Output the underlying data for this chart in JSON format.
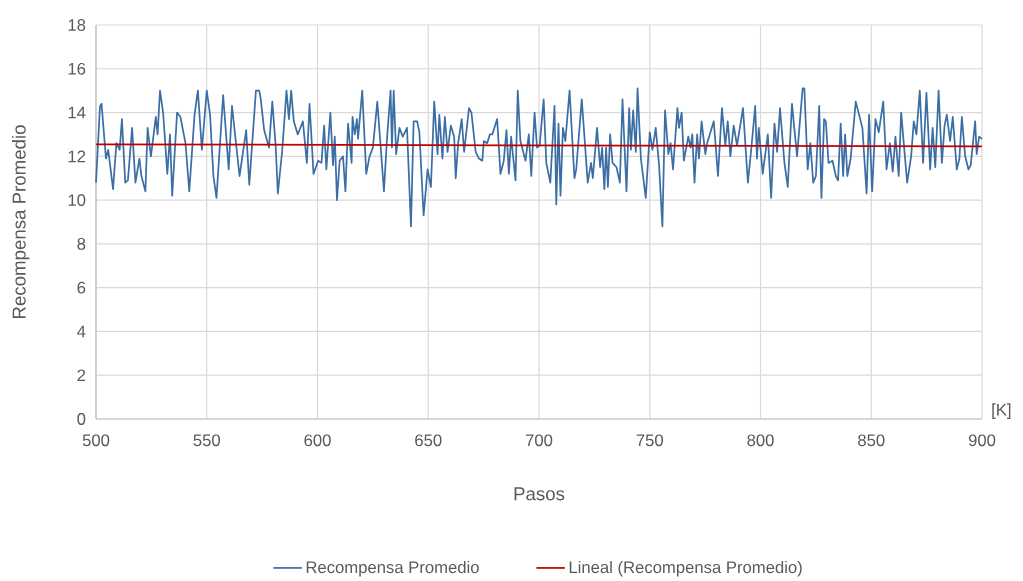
{
  "chart_data": {
    "type": "line",
    "xlabel": "Pasos",
    "ylabel": "Recompensa Promedio",
    "annotations": [
      "[K]"
    ],
    "xlim": [
      500,
      900
    ],
    "xticks": [
      500,
      550,
      600,
      650,
      700,
      750,
      800,
      850,
      900
    ],
    "ylim": [
      0,
      18
    ],
    "yticks": [
      0,
      2,
      4,
      6,
      8,
      10,
      12,
      14,
      16,
      18
    ],
    "grid": true,
    "legend": "bottom",
    "marker": "none",
    "line_style": "solid",
    "series": [
      {
        "name": "Recompensa Promedio",
        "color": "#3b6ea5",
        "x": [
          500,
          501.8,
          502.5,
          504.5,
          505.5,
          507.7,
          509.2,
          510.7,
          511.7,
          513.2,
          514.4,
          516.3,
          517.8,
          519.6,
          520.5,
          522.3,
          523.3,
          524.8,
          527,
          527.8,
          528.9,
          530.3,
          532.2,
          533.4,
          534.4,
          536.6,
          538.1,
          540.4,
          542.1,
          544.5,
          546,
          547.8,
          550,
          551.5,
          553,
          554.4,
          557.4,
          559.9,
          561.4,
          564.8,
          567.8,
          569.2,
          572.2,
          573.7,
          574.4,
          575.9,
          578.1,
          579.6,
          581.1,
          582.1,
          584.1,
          586,
          587.1,
          588.1,
          589.3,
          591.1,
          593.4,
          595.2,
          596.4,
          598.2,
          600.3,
          601.8,
          603,
          604,
          605.8,
          607,
          607.8,
          608.8,
          610,
          611.5,
          612.6,
          613.8,
          615.4,
          615.8,
          616.8,
          617.8,
          618.3,
          620.2,
          622,
          623.5,
          625,
          627,
          630,
          631.3,
          633,
          633.6,
          634.4,
          635.5,
          637,
          638.5,
          640.4,
          642.2,
          643.4,
          645,
          646,
          647.9,
          649.7,
          651.2,
          652.7,
          654.2,
          655,
          656.4,
          657.5,
          658.7,
          660.2,
          661.7,
          662.4,
          663.5,
          665.1,
          666.2,
          668.4,
          669.5,
          671.4,
          672.9,
          674.4,
          675.1,
          676.6,
          677.8,
          678.9,
          681.1,
          682.6,
          684.1,
          685.3,
          686.4,
          687.4,
          689.4,
          690.4,
          691.6,
          693.9,
          695.4,
          696.5,
          698,
          699.1,
          700.3,
          702.1,
          703.3,
          705.1,
          707,
          707.8,
          708.8,
          709.7,
          710.8,
          711.9,
          713.8,
          716,
          716.8,
          719.3,
          722,
          723.5,
          724.3,
          726.2,
          727.6,
          728.5,
          729.5,
          730.3,
          731.1,
          732.1,
          733.2,
          735,
          736.5,
          737.7,
          739.5,
          740.7,
          741.5,
          742.5,
          743.7,
          744.5,
          746,
          748.2,
          750,
          751.2,
          752.7,
          754.2,
          755.7,
          756.9,
          758.4,
          759.4,
          760.5,
          762.5,
          763.2,
          764.4,
          765.4,
          767.4,
          768.4,
          769.2,
          770.2,
          771.4,
          772.2,
          773.4,
          775.1,
          775.9,
          777.4,
          778.9,
          780.8,
          782.6,
          784.1,
          785.2,
          786.4,
          787.9,
          789.4,
          792.1,
          794.3,
          795.8,
          797.6,
          798.4,
          799.2,
          801,
          803.3,
          804.8,
          806.3,
          807.5,
          808.8,
          810.8,
          812.3,
          814.2,
          816.5,
          819,
          819.8,
          821.3,
          822.5,
          823.8,
          825,
          826.5,
          827.5,
          828.7,
          829.5,
          830.7,
          832.5,
          834,
          835,
          836.2,
          837.3,
          838.2,
          839.2,
          840.7,
          843,
          846,
          847.9,
          849,
          850.4,
          851.9,
          853.4,
          855.4,
          856.9,
          858.4,
          859.7,
          860.9,
          862.4,
          863.5,
          866.2,
          868,
          869.2,
          870.4,
          871.9,
          873.4,
          874.9,
          876.6,
          877.7,
          878.9,
          880.4,
          881.9,
          883.1,
          884.1,
          885.6,
          886.8,
          888.6,
          889.8,
          890.9,
          892.4,
          893.9,
          894.9,
          896.9,
          897.6,
          898.7,
          900
        ],
        "values": [
          10.8,
          14.3,
          14.4,
          11.9,
          12.3,
          10.5,
          12.6,
          12.3,
          13.7,
          10.8,
          10.9,
          13.3,
          10.8,
          11.9,
          11.1,
          10.4,
          13.3,
          12.0,
          13.8,
          13.0,
          15.0,
          14.0,
          11.2,
          13.0,
          10.2,
          14.0,
          13.8,
          12.6,
          10.4,
          13.9,
          15.0,
          12.3,
          15.0,
          13.9,
          11.1,
          10.1,
          14.8,
          11.4,
          14.3,
          11.1,
          13.2,
          10.7,
          15.0,
          15.0,
          14.6,
          13.2,
          12.4,
          14.5,
          12.5,
          10.3,
          12.3,
          15.0,
          13.7,
          15.0,
          13.6,
          13.0,
          13.6,
          11.7,
          14.4,
          11.2,
          11.8,
          11.7,
          13.4,
          11.4,
          14.0,
          11.6,
          12.9,
          10.0,
          11.8,
          12.0,
          10.4,
          13.5,
          11.7,
          13.8,
          13.0,
          13.7,
          12.8,
          15.0,
          11.2,
          12.0,
          12.4,
          14.5,
          10.4,
          12.7,
          15.0,
          12.4,
          15.0,
          12.1,
          13.3,
          12.9,
          13.3,
          8.8,
          13.6,
          13.6,
          13.1,
          9.3,
          11.4,
          10.6,
          14.5,
          12.1,
          13.9,
          11.9,
          13.8,
          12.2,
          13.4,
          12.9,
          11.0,
          12.6,
          13.7,
          12.2,
          14.2,
          14.0,
          12.2,
          11.9,
          11.8,
          12.7,
          12.6,
          13.0,
          13.0,
          13.7,
          11.2,
          11.8,
          13.2,
          11.2,
          12.9,
          10.9,
          15.0,
          12.7,
          11.8,
          13.0,
          11.1,
          14.0,
          12.4,
          12.5,
          14.6,
          11.7,
          10.8,
          14.3,
          9.8,
          13.5,
          10.2,
          13.3,
          12.7,
          15.0,
          11.0,
          11.4,
          14.6,
          10.8,
          11.7,
          11.0,
          13.3,
          11.5,
          12.4,
          10.5,
          12.4,
          10.6,
          13.0,
          11.7,
          11.5,
          10.8,
          14.6,
          10.4,
          14.2,
          12.3,
          14.1,
          12.2,
          15.1,
          11.9,
          10.1,
          13.1,
          12.3,
          13.3,
          11.6,
          8.8,
          14.1,
          12.1,
          12.6,
          11.4,
          14.2,
          13.3,
          14.0,
          11.8,
          12.9,
          12.4,
          13.0,
          10.8,
          13.0,
          11.9,
          13.6,
          12.1,
          12.6,
          13.1,
          13.6,
          11.1,
          14.2,
          12.5,
          13.6,
          12.0,
          13.4,
          12.5,
          14.2,
          10.8,
          12.3,
          14.3,
          11.9,
          13.3,
          11.2,
          13.0,
          10.1,
          13.5,
          12.2,
          14.2,
          11.7,
          10.6,
          14.4,
          12.0,
          15.1,
          15.1,
          11.4,
          12.6,
          10.8,
          11.1,
          14.3,
          10.1,
          13.7,
          13.6,
          11.7,
          11.8,
          11.1,
          10.9,
          13.5,
          11.1,
          13.0,
          11.1,
          11.9,
          14.5,
          13.3,
          10.3,
          13.9,
          10.4,
          13.7,
          13.1,
          14.5,
          11.4,
          12.6,
          11.3,
          12.9,
          11.1,
          14.0,
          10.8,
          12.0,
          13.6,
          13.0,
          15.0,
          11.7,
          14.9,
          11.4,
          13.3,
          11.5,
          15.0,
          11.7,
          13.4,
          13.9,
          12.7,
          13.8,
          11.4,
          11.9,
          13.8,
          12.0,
          11.4,
          11.6,
          13.6,
          12.1,
          12.9,
          12.8
        ]
      },
      {
        "name": "Lineal (Recompensa Promedio)",
        "type": "line",
        "color": "#c00000",
        "x": [
          500,
          900
        ],
        "values": [
          12.55,
          12.45
        ]
      }
    ]
  }
}
